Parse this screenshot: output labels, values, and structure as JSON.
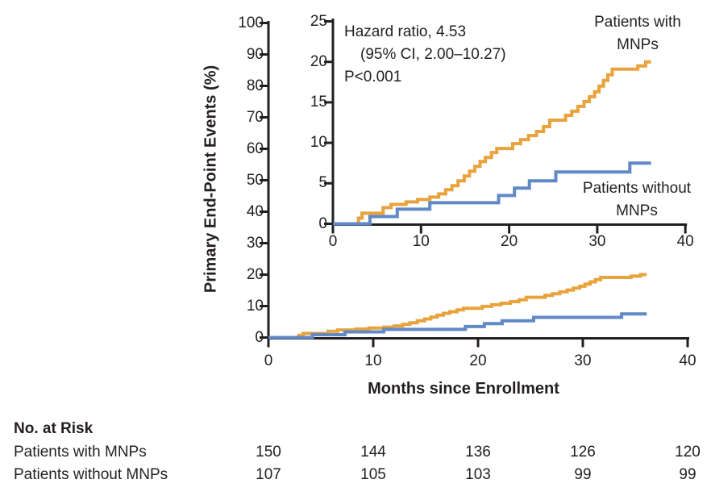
{
  "colors": {
    "with_mnps": "#E8A33C",
    "without_mnps": "#6189C6",
    "axis": "#231F20",
    "text": "#231F20"
  },
  "axis_titles": {
    "y": "Primary End-Point Events (%)",
    "x": "Months since Enrollment"
  },
  "annotation": {
    "line1": "Hazard ratio, 4.53",
    "line2": "(95% CI, 2.00–10.27)",
    "line3": "P<0.001"
  },
  "series_labels": {
    "with": {
      "line1": "Patients with",
      "line2": "MNPs"
    },
    "without": {
      "line1": "Patients without",
      "line2": "MNPs"
    }
  },
  "at_risk": {
    "title": "No. at Risk",
    "rows": [
      {
        "label": "Patients with MNPs",
        "values": [
          "150",
          "144",
          "136",
          "126",
          "120"
        ]
      },
      {
        "label": "Patients without MNPs",
        "values": [
          "107",
          "105",
          "103",
          "99",
          "99"
        ]
      }
    ]
  },
  "chart_data": {
    "type": "line",
    "subtype": "kaplan-meier-cumulative-incidence-step-curves with zoomed inset panel",
    "title": "",
    "xlabel": "Months since Enrollment",
    "ylabel": "Primary End-Point Events (%)",
    "legend_position": "labels drawn next to curves (inset panel)",
    "main_axis": {
      "xlim": [
        0,
        40
      ],
      "ylim": [
        0,
        100
      ],
      "xticks": [
        0,
        10,
        20,
        30,
        40
      ],
      "yticks": [
        0,
        10,
        20,
        30,
        40,
        50,
        60,
        70,
        80,
        90,
        100
      ],
      "grid": false
    },
    "inset_axis": {
      "xlim": [
        0,
        40
      ],
      "ylim": [
        0,
        25
      ],
      "xticks": [
        0,
        10,
        20,
        30,
        40
      ],
      "yticks": [
        0,
        5,
        10,
        15,
        20,
        25
      ],
      "grid": false
    },
    "annotation": {
      "hazard_ratio": 4.53,
      "ci_95": [
        2.0,
        10.27
      ],
      "p_value": "P<0.001"
    },
    "series": [
      {
        "name": "Patients with MNPs",
        "color_key": "with_mnps",
        "points": [
          [
            0,
            0
          ],
          [
            2.9,
            0.7
          ],
          [
            3.3,
            1.3
          ],
          [
            5.7,
            2.0
          ],
          [
            6.6,
            2.4
          ],
          [
            8.3,
            2.7
          ],
          [
            9.6,
            3.0
          ],
          [
            11.0,
            3.3
          ],
          [
            12.0,
            3.7
          ],
          [
            12.8,
            4.2
          ],
          [
            13.5,
            4.7
          ],
          [
            14.2,
            5.3
          ],
          [
            14.9,
            5.9
          ],
          [
            15.5,
            6.5
          ],
          [
            16.1,
            7.1
          ],
          [
            16.7,
            7.7
          ],
          [
            17.3,
            8.2
          ],
          [
            18.0,
            8.8
          ],
          [
            18.6,
            9.3
          ],
          [
            20.4,
            9.9
          ],
          [
            21.3,
            10.4
          ],
          [
            22.2,
            10.9
          ],
          [
            23.1,
            11.4
          ],
          [
            23.9,
            12.0
          ],
          [
            24.6,
            12.8
          ],
          [
            26.4,
            13.4
          ],
          [
            27.1,
            13.9
          ],
          [
            27.8,
            14.5
          ],
          [
            28.5,
            15.1
          ],
          [
            29.1,
            15.7
          ],
          [
            29.7,
            16.3
          ],
          [
            30.2,
            17.0
          ],
          [
            30.7,
            17.7
          ],
          [
            31.2,
            18.4
          ],
          [
            31.7,
            19.1
          ],
          [
            34.6,
            19.5
          ],
          [
            35.5,
            20.0
          ],
          [
            36.1,
            20.0
          ]
        ]
      },
      {
        "name": "Patients without MNPs",
        "color_key": "without_mnps",
        "points": [
          [
            0,
            0
          ],
          [
            4.2,
            0.9
          ],
          [
            7.3,
            1.8
          ],
          [
            11.0,
            2.6
          ],
          [
            18.8,
            3.5
          ],
          [
            20.6,
            4.4
          ],
          [
            22.3,
            5.3
          ],
          [
            25.3,
            6.4
          ],
          [
            33.7,
            7.5
          ],
          [
            36.1,
            7.5
          ]
        ]
      }
    ],
    "at_risk": {
      "months": [
        0,
        10,
        20,
        30,
        40
      ],
      "with_mnps": [
        150,
        144,
        136,
        126,
        120
      ],
      "without_mnps": [
        107,
        105,
        103,
        99,
        99
      ]
    }
  }
}
